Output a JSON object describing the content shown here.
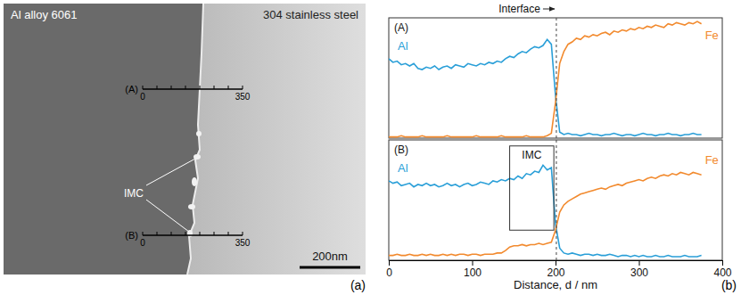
{
  "micrograph": {
    "left_label": "Al alloy 6061",
    "right_label": "304 stainless steel",
    "rulers": [
      {
        "label": "(A)",
        "ticks": [
          0,
          50,
          100,
          150,
          200,
          250,
          300,
          350
        ],
        "tick_labels": [
          0,
          350
        ]
      },
      {
        "label": "(B)",
        "ticks": [
          0,
          50,
          100,
          150,
          200,
          250,
          300,
          350
        ],
        "tick_labels": [
          0,
          350
        ]
      }
    ],
    "imc_label": "IMC",
    "scale_bar": "200nm",
    "panel_label": "(a)"
  },
  "plot_panel_label": "(b)",
  "chart_data": [
    {
      "type": "line",
      "title": "(A)",
      "x": [
        0,
        5,
        10,
        15,
        20,
        25,
        30,
        35,
        40,
        45,
        50,
        55,
        60,
        65,
        70,
        75,
        80,
        85,
        90,
        95,
        100,
        105,
        110,
        115,
        120,
        125,
        130,
        135,
        140,
        145,
        150,
        155,
        160,
        165,
        170,
        175,
        180,
        185,
        190,
        195,
        200,
        205,
        210,
        215,
        220,
        225,
        230,
        235,
        240,
        245,
        250,
        255,
        260,
        265,
        270,
        275,
        280,
        285,
        290,
        295,
        300,
        305,
        310,
        315,
        320,
        325,
        330,
        335,
        340,
        345,
        350,
        355,
        360,
        365,
        370,
        375
      ],
      "xlim": [
        0,
        400
      ],
      "ylim": [
        0,
        100
      ],
      "tick_labels": false,
      "series": [
        {
          "name": "Al",
          "color": "#2a9fd8",
          "values": [
            66,
            63,
            64,
            61,
            62,
            60,
            62,
            58,
            57,
            59,
            58,
            60,
            57,
            59,
            60,
            58,
            61,
            60,
            59,
            62,
            61,
            60,
            62,
            61,
            63,
            62,
            64,
            63,
            66,
            68,
            67,
            70,
            72,
            71,
            74,
            76,
            75,
            77,
            82,
            78,
            35,
            5,
            3,
            4,
            3,
            3,
            2,
            3,
            4,
            3,
            3,
            2,
            3,
            3,
            4,
            3,
            2,
            3,
            3,
            2,
            3,
            4,
            3,
            3,
            2,
            3,
            3,
            4,
            3,
            3,
            2,
            3,
            3,
            4,
            3,
            3
          ]
        },
        {
          "name": "Fe",
          "color": "#f28a2e",
          "values": [
            1,
            1,
            1,
            2,
            1,
            1,
            1,
            1,
            2,
            1,
            1,
            1,
            1,
            1,
            2,
            1,
            1,
            1,
            1,
            1,
            1,
            2,
            1,
            1,
            1,
            1,
            1,
            2,
            1,
            1,
            1,
            1,
            1,
            2,
            1,
            1,
            1,
            1,
            2,
            4,
            30,
            62,
            72,
            78,
            80,
            83,
            82,
            85,
            84,
            86,
            85,
            87,
            88,
            86,
            89,
            88,
            90,
            89,
            91,
            90,
            92,
            91,
            93,
            92,
            94,
            93,
            92,
            95,
            94,
            96,
            95,
            94,
            96,
            95,
            97,
            95
          ]
        }
      ],
      "annotations": [
        {
          "type": "vline",
          "x": 201,
          "label": "Interface"
        }
      ]
    },
    {
      "type": "line",
      "title": "(B)",
      "x": [
        0,
        5,
        10,
        15,
        20,
        25,
        30,
        35,
        40,
        45,
        50,
        55,
        60,
        65,
        70,
        75,
        80,
        85,
        90,
        95,
        100,
        105,
        110,
        115,
        120,
        125,
        130,
        135,
        140,
        145,
        150,
        155,
        160,
        165,
        170,
        175,
        180,
        185,
        190,
        195,
        200,
        205,
        210,
        215,
        220,
        225,
        230,
        235,
        240,
        245,
        250,
        255,
        260,
        265,
        270,
        275,
        280,
        285,
        290,
        295,
        300,
        305,
        310,
        315,
        320,
        325,
        330,
        335,
        340,
        345,
        350,
        355,
        360,
        365,
        370,
        375
      ],
      "xlim": [
        0,
        400
      ],
      "xticks": [
        0,
        100,
        200,
        300,
        400
      ],
      "ylim": [
        0,
        100
      ],
      "tick_labels": "x",
      "xlabel": "Distance, d / nm",
      "series": [
        {
          "name": "Al",
          "color": "#2a9fd8",
          "values": [
            66,
            64,
            65,
            62,
            63,
            64,
            61,
            63,
            62,
            64,
            62,
            63,
            61,
            62,
            64,
            62,
            63,
            61,
            63,
            64,
            62,
            63,
            65,
            64,
            63,
            66,
            65,
            67,
            66,
            68,
            67,
            70,
            68,
            72,
            71,
            74,
            73,
            79,
            75,
            77,
            30,
            10,
            6,
            5,
            6,
            5,
            4,
            5,
            5,
            4,
            5,
            4,
            4,
            5,
            4,
            3,
            4,
            4,
            3,
            4,
            3,
            4,
            3,
            3,
            4,
            3,
            3,
            4,
            3,
            3,
            3,
            4,
            3,
            3,
            3,
            4
          ]
        },
        {
          "name": "Fe",
          "color": "#f28a2e",
          "values": [
            4,
            4,
            5,
            4,
            4,
            5,
            4,
            4,
            5,
            4,
            5,
            4,
            4,
            5,
            4,
            5,
            4,
            5,
            5,
            4,
            5,
            5,
            4,
            5,
            5,
            5,
            6,
            6,
            8,
            11,
            12,
            12,
            13,
            12,
            13,
            13,
            14,
            13,
            14,
            15,
            25,
            40,
            46,
            49,
            51,
            53,
            55,
            56,
            57,
            58,
            59,
            60,
            59,
            61,
            62,
            63,
            62,
            64,
            65,
            66,
            67,
            66,
            68,
            69,
            68,
            70,
            71,
            70,
            72,
            71,
            73,
            72,
            71,
            73,
            72,
            71
          ]
        }
      ],
      "annotations": [
        {
          "type": "vline",
          "x": 201
        },
        {
          "type": "box",
          "x0": 145,
          "x1": 198,
          "y0": 25,
          "y1": 95,
          "label": "IMC"
        }
      ]
    }
  ]
}
